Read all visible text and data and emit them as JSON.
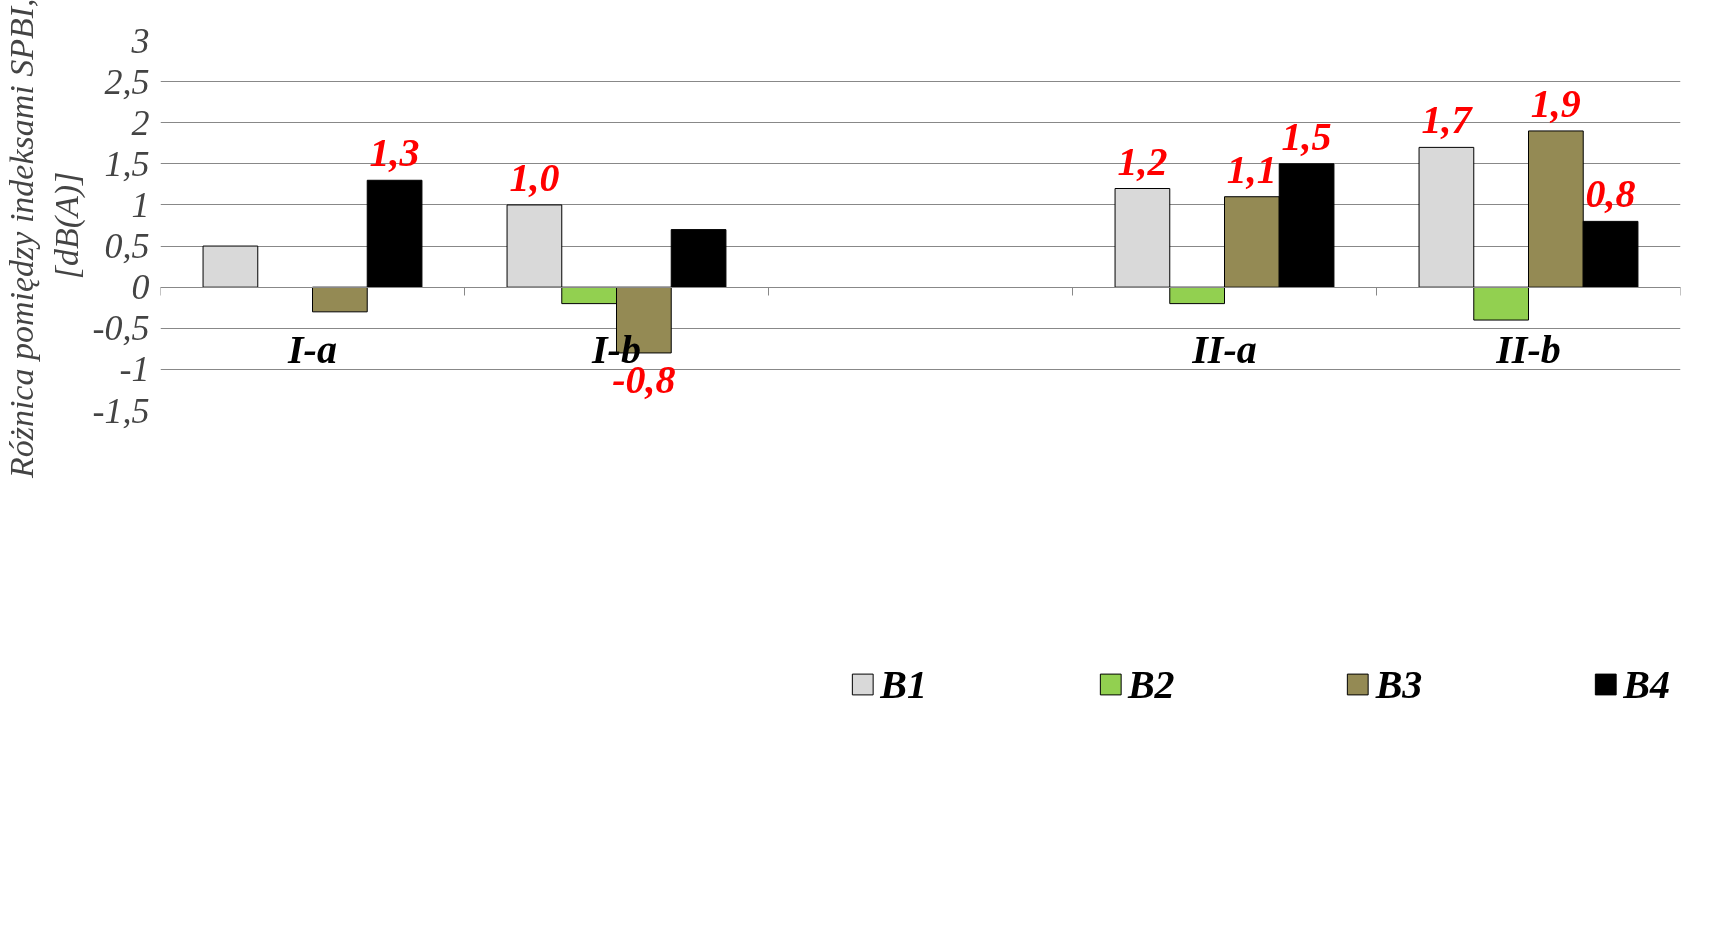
{
  "chart_data": {
    "type": "bar",
    "ylabel": "Różnica  pomiędzy  indeksami  SPBI,\n[dB(A)]",
    "categories": [
      "I-a",
      "I-b",
      null,
      "II-a",
      "II-b"
    ],
    "series": [
      {
        "name": "B1",
        "color": "#d9d9d9",
        "values": [
          0.5,
          1.0,
          null,
          1.2,
          1.7
        ],
        "value_labels": [
          null,
          "1,0",
          null,
          "1,2",
          "1,7"
        ]
      },
      {
        "name": "B2",
        "color": "#92d050",
        "values": [
          null,
          -0.2,
          null,
          -0.2,
          -0.4
        ],
        "value_labels": [
          null,
          null,
          null,
          null,
          null
        ]
      },
      {
        "name": "B3",
        "color": "#948a54",
        "values": [
          -0.3,
          -0.8,
          null,
          1.1,
          1.9
        ],
        "value_labels": [
          null,
          "-0,8",
          null,
          "1,1",
          "1,9"
        ]
      },
      {
        "name": "B4",
        "color": "#000000",
        "values": [
          1.3,
          0.7,
          null,
          1.5,
          0.8
        ],
        "value_labels": [
          "1,3",
          null,
          null,
          "1,5",
          "0,8"
        ]
      }
    ],
    "ylim": [
      -1.5,
      3
    ],
    "yticks": [
      {
        "value": -1.5,
        "label": "-1,5"
      },
      {
        "value": -1,
        "label": "-1"
      },
      {
        "value": -0.5,
        "label": "-0,5"
      },
      0,
      {
        "value": 0.5,
        "label": "0,5"
      },
      1,
      {
        "value": 1.5,
        "label": "1,5"
      },
      2,
      {
        "value": 2.5,
        "label": "2,5"
      },
      3
    ],
    "grid": "y",
    "legend": "bottom"
  }
}
